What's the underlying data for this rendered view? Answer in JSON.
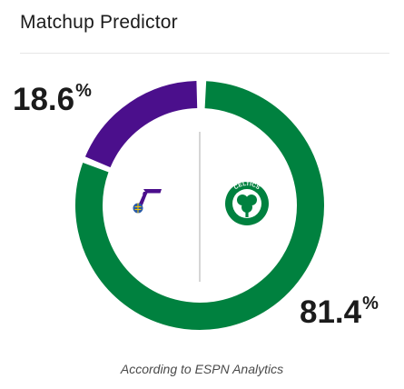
{
  "header": {
    "title": "Matchup Predictor"
  },
  "away_team": {
    "icon": "utah-jazz-logo-icon",
    "color": "#4B0F8C",
    "win_probability": 18.6,
    "percent_text": "18.6",
    "percent_symbol": "%"
  },
  "home_team": {
    "icon": "boston-celtics-logo-icon",
    "color": "#00813F",
    "win_probability": 81.4,
    "percent_text": "81.4",
    "percent_symbol": "%",
    "logo_text": "CELTICS"
  },
  "footer": {
    "source": "According to ESPN Analytics"
  }
}
